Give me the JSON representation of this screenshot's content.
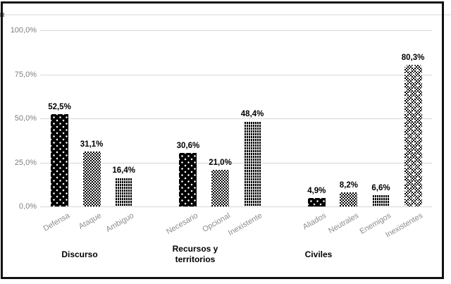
{
  "chart_data": {
    "type": "bar",
    "title": "",
    "legend": "none",
    "y_axis": {
      "ylim": [
        0,
        100
      ],
      "grid": true,
      "ticks": [
        {
          "value": 0,
          "label": "0,0%"
        },
        {
          "value": 25,
          "label": "25,0%"
        },
        {
          "value": 50,
          "label": "50,0%"
        },
        {
          "value": 75,
          "label": "75,0%"
        },
        {
          "value": 100,
          "label": "100,0%"
        }
      ]
    },
    "groups": [
      {
        "label": "Discurso",
        "categories": [
          "Defensa",
          "Ataque",
          "Ambiguo"
        ],
        "values": [
          52.5,
          31.1,
          16.4
        ],
        "value_labels": [
          "52,5%",
          "31,1%",
          "16,4%"
        ],
        "patterns": [
          "white-dots-on-black",
          "light-checker",
          "dark-brick"
        ]
      },
      {
        "label": "Recursos y\nterritorios",
        "categories": [
          "Necesario",
          "Opcional",
          "Inexistente"
        ],
        "values": [
          30.6,
          21.0,
          48.4
        ],
        "value_labels": [
          "30,6%",
          "21,0%",
          "48,4%"
        ],
        "patterns": [
          "white-dots-on-black",
          "light-checker",
          "dark-brick"
        ]
      },
      {
        "label": "Civiles",
        "categories": [
          "Aliados",
          "Neutrales",
          "Enemigos",
          "Inexistentes"
        ],
        "values": [
          4.9,
          8.2,
          6.6,
          80.3
        ],
        "value_labels": [
          "4,9%",
          "8,2%",
          "6,6%",
          "80,3%"
        ],
        "patterns": [
          "white-dots-on-black",
          "light-checker",
          "dark-brick",
          "checker-with-white-dots"
        ]
      }
    ],
    "colors": {
      "bar_ink": "#000000",
      "gridline": "#d6d6d6",
      "tick_label": "#7f7f7f",
      "category_label": "#8c8c8c",
      "data_label": "#000000",
      "frame": "#111111"
    }
  }
}
